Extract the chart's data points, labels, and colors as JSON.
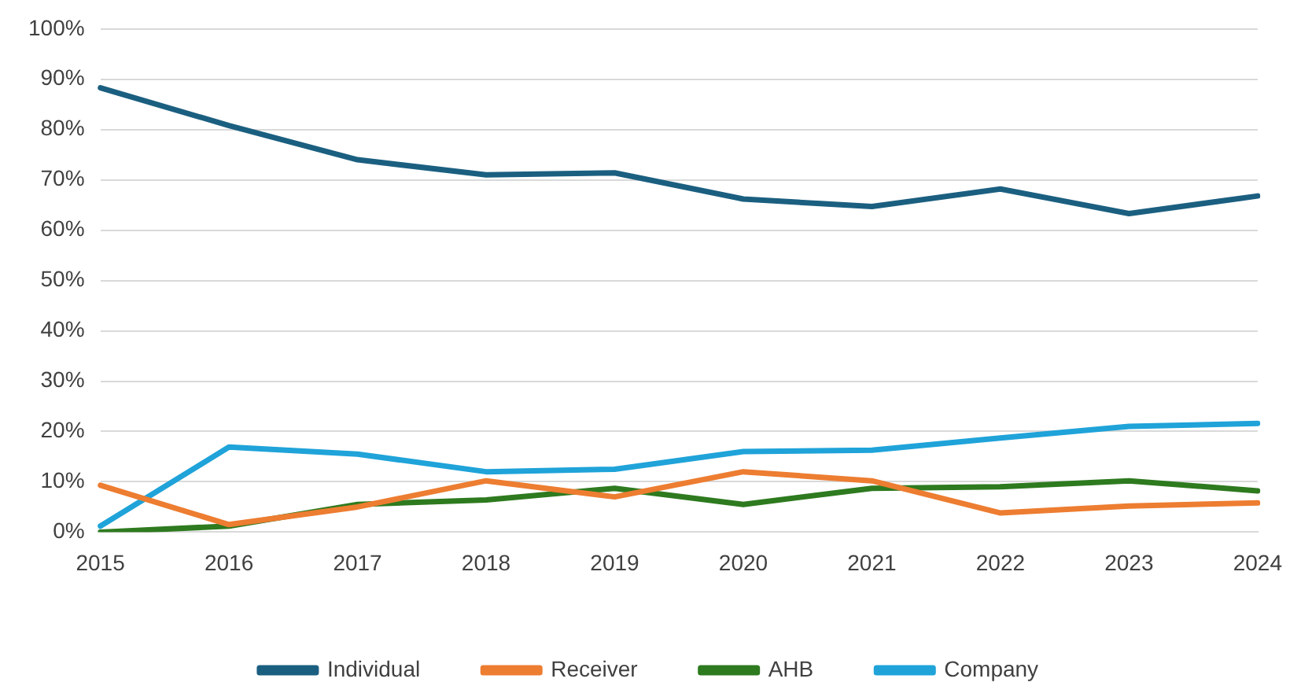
{
  "chart_data": {
    "type": "line",
    "categories": [
      "2015",
      "2016",
      "2017",
      "2018",
      "2019",
      "2020",
      "2021",
      "2022",
      "2023",
      "2024"
    ],
    "series": [
      {
        "name": "Individual",
        "color": "#1b5f80",
        "values": [
          88.3,
          80.8,
          74,
          71,
          71.4,
          66.2,
          64.7,
          68.2,
          63.3,
          66.8
        ]
      },
      {
        "name": "Receiver",
        "color": "#ed7d31",
        "values": [
          9.3,
          1.5,
          5,
          10.2,
          7,
          12,
          10.2,
          3.8,
          5.2,
          5.8
        ]
      },
      {
        "name": "AHB",
        "color": "#2e7a1f",
        "values": [
          0,
          1.2,
          5.5,
          6.4,
          8.7,
          5.5,
          8.7,
          9,
          10.2,
          8.2
        ]
      },
      {
        "name": "Company",
        "color": "#1fa3d9",
        "values": [
          1.2,
          16.9,
          15.5,
          12,
          12.5,
          16,
          16.3,
          18.7,
          21,
          21.6
        ]
      }
    ],
    "ylim": [
      0,
      100
    ],
    "yticks": [
      {
        "value": 0,
        "label": "0%"
      },
      {
        "value": 10,
        "label": "10%"
      },
      {
        "value": 20,
        "label": "20%"
      },
      {
        "value": 30,
        "label": "30%"
      },
      {
        "value": 40,
        "label": "40%"
      },
      {
        "value": 50,
        "label": "50%"
      },
      {
        "value": 60,
        "label": "60%"
      },
      {
        "value": 70,
        "label": "70%"
      },
      {
        "value": 80,
        "label": "80%"
      },
      {
        "value": 90,
        "label": "90%"
      },
      {
        "value": 100,
        "label": "100%"
      }
    ],
    "grid": "y",
    "legend": "bottom",
    "marker": "none",
    "line_style": "solid"
  }
}
